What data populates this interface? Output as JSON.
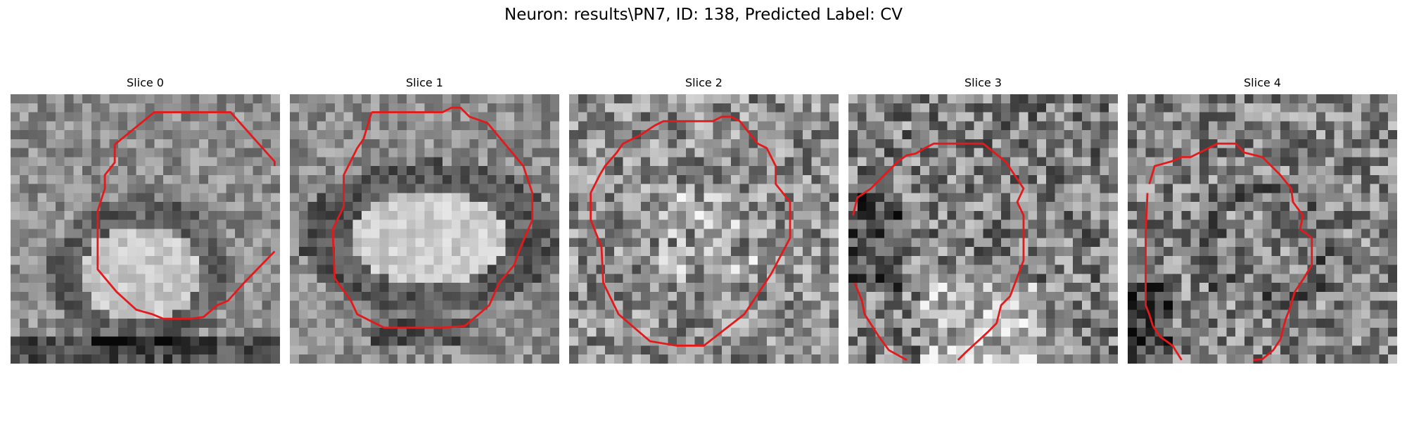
{
  "figure": {
    "title": "Neuron: results\\PN7, ID: 138, Predicted Label: CV",
    "contour_color": "#e31a1c",
    "colormap": "gray",
    "panels": [
      {
        "label": "Slice 0",
        "icon": "microscopy-slice-image"
      },
      {
        "label": "Slice 1",
        "icon": "microscopy-slice-image"
      },
      {
        "label": "Slice 2",
        "icon": "microscopy-slice-image"
      },
      {
        "label": "Slice 3",
        "icon": "microscopy-slice-image"
      },
      {
        "label": "Slice 4",
        "icon": "microscopy-slice-image"
      }
    ]
  }
}
